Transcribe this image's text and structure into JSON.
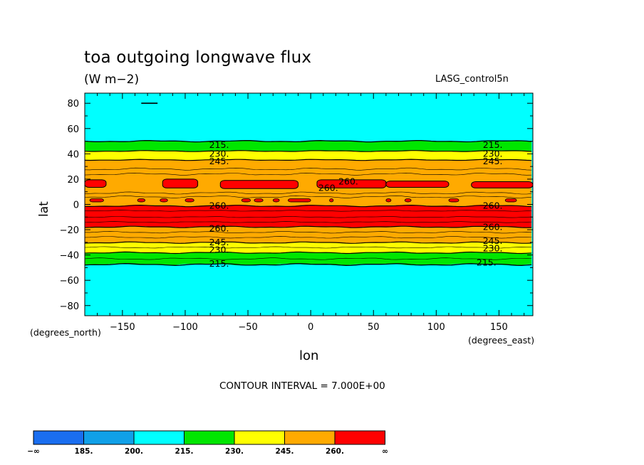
{
  "title": "toa outgoing longwave flux",
  "units": "(W m−2)",
  "dataset": "LASG_control5n",
  "contour_interval": "CONTOUR INTERVAL = 7.000E+00",
  "colors": {
    "c_lt185": "#1a6ef0",
    "c_185_200": "#10a0e8",
    "c_200_215": "#00ffff",
    "c_215_230": "#00e600",
    "c_230_245": "#ffff00",
    "c_245_260": "#ffaa00",
    "c_gt260": "#ff0000"
  },
  "chart_data": {
    "type": "heatmap",
    "title": "toa outgoing longwave flux",
    "subtitle": "(W m−2)",
    "xlabel": "lon",
    "ylabel": "lat",
    "xunits": "(degrees_east)",
    "yunits": "(degrees_north)",
    "xlim": [
      -180,
      177
    ],
    "ylim": [
      -88,
      88
    ],
    "xticks": [
      -150,
      -100,
      -50,
      0,
      50,
      100,
      150
    ],
    "xtick_labels": [
      "−150",
      "−100",
      "−50",
      "0",
      "50",
      "100",
      "150"
    ],
    "yticks": [
      -80,
      -60,
      -40,
      -20,
      0,
      20,
      40,
      60,
      80
    ],
    "ytick_labels": [
      "−80",
      "−60",
      "−40",
      "−20",
      "0",
      "20",
      "40",
      "60",
      "80"
    ],
    "bands": [
      {
        "lat_from": 88,
        "lat_to": 50,
        "range": "200-215"
      },
      {
        "lat_from": 50,
        "lat_to": 42,
        "range": "215-230"
      },
      {
        "lat_from": 42,
        "lat_to": 35,
        "range": "230-245"
      },
      {
        "lat_from": 35,
        "lat_to": 20,
        "range": "245-260"
      },
      {
        "lat_from": 20,
        "lat_to": 13,
        "range": ">260 (patchy)"
      },
      {
        "lat_from": 13,
        "lat_to": -1,
        "range": "245-260"
      },
      {
        "lat_from": -1,
        "lat_to": -18,
        "range": ">260"
      },
      {
        "lat_from": -18,
        "lat_to": -30,
        "range": "245-260"
      },
      {
        "lat_from": -30,
        "lat_to": -38,
        "range": "230-245"
      },
      {
        "lat_from": -38,
        "lat_to": -47,
        "range": "215-230"
      },
      {
        "lat_from": -47,
        "lat_to": -88,
        "range": "200-215"
      }
    ],
    "contour_labels": [
      {
        "text": "215.",
        "lon": -73,
        "lat": 47
      },
      {
        "text": "230.",
        "lon": -73,
        "lat": 40
      },
      {
        "text": "245.",
        "lon": -73,
        "lat": 34
      },
      {
        "text": "260.",
        "lon": 30,
        "lat": 18
      },
      {
        "text": "260.",
        "lon": 14,
        "lat": 13
      },
      {
        "text": "260.",
        "lon": -73,
        "lat": -1
      },
      {
        "text": "260.",
        "lon": -73,
        "lat": -19
      },
      {
        "text": "245.",
        "lon": -73,
        "lat": -30
      },
      {
        "text": "230.",
        "lon": -73,
        "lat": -36
      },
      {
        "text": "215.",
        "lon": -73,
        "lat": -47
      },
      {
        "text": "215.",
        "lon": 145,
        "lat": 47
      },
      {
        "text": "230.",
        "lon": 145,
        "lat": 40
      },
      {
        "text": "245.",
        "lon": 145,
        "lat": 34
      },
      {
        "text": "260.",
        "lon": 145,
        "lat": -1
      },
      {
        "text": "260.",
        "lon": 145,
        "lat": -18
      },
      {
        "text": "245.",
        "lon": 145,
        "lat": -29
      },
      {
        "text": "230.",
        "lon": 145,
        "lat": -35
      },
      {
        "text": "215.",
        "lon": 140,
        "lat": -46
      }
    ],
    "colorbar": {
      "labels": [
        "−∞",
        "185.",
        "200.",
        "215.",
        "230.",
        "245.",
        "260.",
        "∞"
      ]
    }
  }
}
